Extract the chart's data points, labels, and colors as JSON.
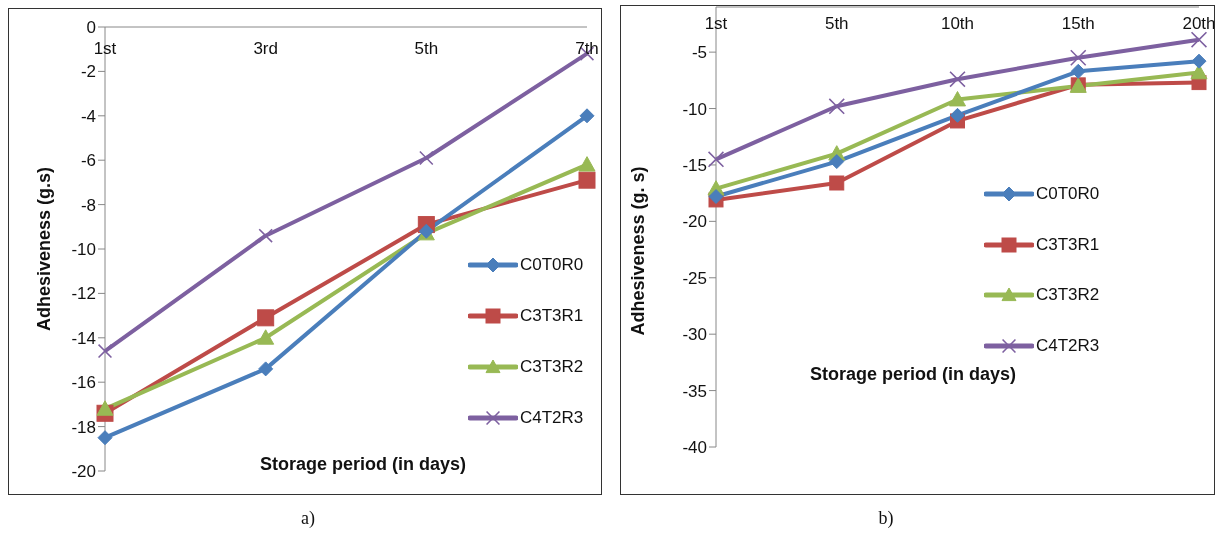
{
  "chart_data": [
    {
      "type": "line",
      "xlabel": "Storage period (in days)",
      "ylabel": "Adhesiveness (g.s)",
      "categories": [
        "1st",
        "3rd",
        "5th",
        "7th"
      ],
      "ylim": [
        -20,
        0
      ],
      "yticks": [
        -20,
        -18,
        -16,
        -14,
        -12,
        -10,
        -8,
        -6,
        -4,
        -2,
        0
      ],
      "legend": "right",
      "annotations": [
        "a)"
      ],
      "series": [
        {
          "name": "C0T0R0",
          "color": "#4a7ebb",
          "marker": "diamond",
          "values": [
            -18.5,
            -15.4,
            -9.2,
            -4.0
          ]
        },
        {
          "name": "C3T3R1",
          "color": "#be4b48",
          "marker": "square",
          "values": [
            -17.4,
            -13.1,
            -8.9,
            -6.9
          ]
        },
        {
          "name": "C3T3R2",
          "color": "#98b954",
          "marker": "triangle",
          "values": [
            -17.2,
            -14.0,
            -9.3,
            -6.2
          ]
        },
        {
          "name": "C4T2R3",
          "color": "#7d60a0",
          "marker": "cross",
          "values": [
            -14.6,
            -9.4,
            -5.9,
            -1.2
          ]
        }
      ]
    },
    {
      "type": "line",
      "xlabel": "Storage period (in days)",
      "ylabel": "Adhesiveness (g. s)",
      "categories": [
        "1st",
        "5th",
        "10th",
        "15th",
        "20th"
      ],
      "ylim": [
        -40,
        -1
      ],
      "yticks": [
        -40,
        -35,
        -30,
        -25,
        -20,
        -15,
        -10,
        -5
      ],
      "legend": "right",
      "annotations": [
        "b)"
      ],
      "series": [
        {
          "name": "C0T0R0",
          "color": "#4a7ebb",
          "marker": "diamond",
          "values": [
            -17.8,
            -14.7,
            -10.6,
            -6.7,
            -5.8
          ]
        },
        {
          "name": "C3T3R1",
          "color": "#be4b48",
          "marker": "square",
          "values": [
            -18.1,
            -16.6,
            -11.1,
            -7.9,
            -7.7
          ]
        },
        {
          "name": "C3T3R2",
          "color": "#98b954",
          "marker": "triangle",
          "values": [
            -17.1,
            -14.0,
            -9.2,
            -8.0,
            -6.8
          ]
        },
        {
          "name": "C4T2R3",
          "color": "#7d60a0",
          "marker": "cross",
          "values": [
            -14.5,
            -9.8,
            -7.4,
            -5.5,
            -3.9
          ]
        }
      ]
    }
  ]
}
